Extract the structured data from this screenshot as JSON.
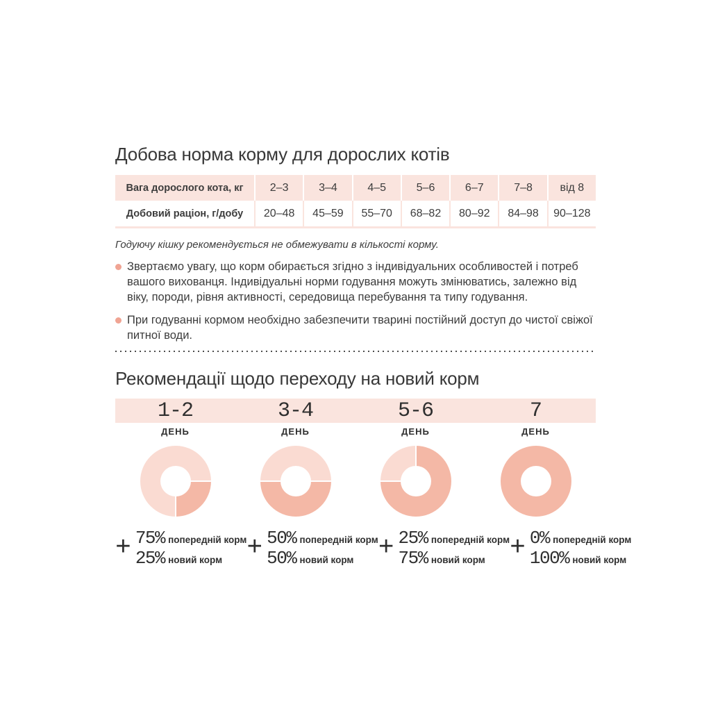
{
  "colors": {
    "band_pink": "#fae4de",
    "donut_light": "#fadbd2",
    "donut_dark": "#f4b8a6",
    "bullet_dot": "#f0a493",
    "divider_dot": "#4c4c4c",
    "text": "#3c3c3c"
  },
  "daily_norm": {
    "title": "Добова норма корму для дорослих котів",
    "table": {
      "header_label": "Вага дорослого кота, кг",
      "header_values": [
        "2–3",
        "3–4",
        "4–5",
        "5–6",
        "6–7",
        "7–8",
        "від 8"
      ],
      "row_label": "Добовий раціон, г/добу",
      "row_values": [
        "20–48",
        "45–59",
        "55–70",
        "68–82",
        "80–92",
        "84–98",
        "90–128"
      ]
    },
    "note": "Годуючу кішку рекомендується не обмежувати в кількості корму.",
    "bullets": [
      "Звертаємо увагу, що корм обирається згідно з індивідуальних особливостей і потреб вашого вихованця. Індивідуальні норми годування можуть змінюватись, залежно від віку, породи, рівня активності, середовища перебування та типу годування.",
      "При годуванні кормом необхідно забезпечити тварині постійний доступ до чистої свіжої питної води."
    ]
  },
  "transition": {
    "title": "Рекомендації щодо переходу на новий корм",
    "day_word": "ДЕНЬ",
    "plus": "+",
    "steps": [
      {
        "days": "1-2",
        "prev_pct": "75%",
        "prev_label": "попередній корм",
        "new_pct": "25%",
        "new_label": "новий корм"
      },
      {
        "days": "3-4",
        "prev_pct": "50%",
        "prev_label": "попередній корм",
        "new_pct": "50%",
        "new_label": "новий корм"
      },
      {
        "days": "5-6",
        "prev_pct": "25%",
        "prev_label": "попередній корм",
        "new_pct": "75%",
        "new_label": "новий корм"
      },
      {
        "days": "7",
        "prev_pct": "0%",
        "prev_label": "попередній корм",
        "new_pct": "100%",
        "new_label": "новий корм"
      }
    ]
  },
  "chart_data": [
    {
      "type": "pie",
      "variant": "donut",
      "title": "День 1-2",
      "slices": [
        {
          "label": "попередній корм",
          "value": 75,
          "color": "#fadbd2"
        },
        {
          "label": "новий корм",
          "value": 25,
          "color": "#f4b8a6"
        }
      ],
      "new_slice_start_deg": 90
    },
    {
      "type": "pie",
      "variant": "donut",
      "title": "День 3-4",
      "slices": [
        {
          "label": "попередній корм",
          "value": 50,
          "color": "#fadbd2"
        },
        {
          "label": "новий корм",
          "value": 50,
          "color": "#f4b8a6"
        }
      ],
      "new_slice_start_deg": 90
    },
    {
      "type": "pie",
      "variant": "donut",
      "title": "День 5-6",
      "slices": [
        {
          "label": "попередній корм",
          "value": 25,
          "color": "#fadbd2"
        },
        {
          "label": "новий корм",
          "value": 75,
          "color": "#f4b8a6"
        }
      ],
      "new_slice_start_deg": 0
    },
    {
      "type": "pie",
      "variant": "donut",
      "title": "День 7",
      "slices": [
        {
          "label": "попередній корм",
          "value": 0,
          "color": "#fadbd2"
        },
        {
          "label": "новий корм",
          "value": 100,
          "color": "#f4b8a6"
        }
      ],
      "new_slice_start_deg": 0
    }
  ]
}
